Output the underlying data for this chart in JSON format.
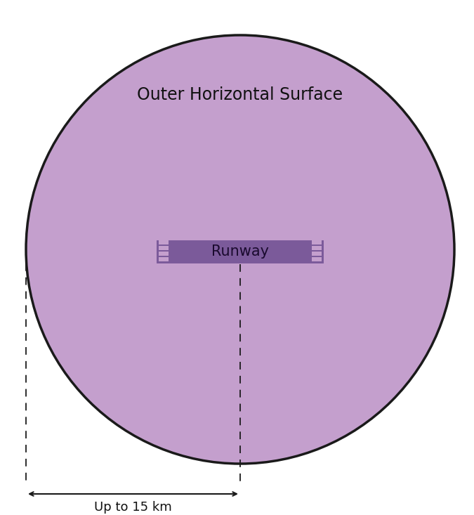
{
  "title": "Outer Horizontal Surface",
  "runway_label": "Runway",
  "distance_label": "Up to 15 km",
  "circle_color": "#c49fcd",
  "circle_edge_color": "#1a1a1a",
  "runway_fill_color": "#7b5a9a",
  "runway_border_color": "#c49fcd",
  "runway_stripe_color": "#c49fcd",
  "runway_label_color": "#1a0a2e",
  "dashed_line_color": "#1a1a1a",
  "arrow_color": "#1a1a1a",
  "background_color": "#ffffff",
  "title_fontsize": 17,
  "runway_fontsize": 15,
  "arrow_fontsize": 13,
  "figsize": [
    6.75,
    7.33
  ],
  "dpi": 100
}
